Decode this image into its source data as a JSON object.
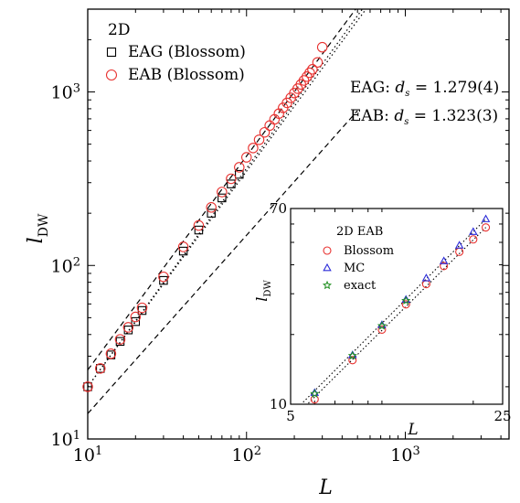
{
  "chart_data": [
    {
      "type": "scatter",
      "xlabel": "L",
      "ylabel": "l",
      "ylabel_sub": "DW",
      "xscale": "log",
      "yscale": "log",
      "xlim": [
        10,
        4500
      ],
      "ylim": [
        10,
        3000
      ],
      "xticks": [
        10,
        100,
        1000
      ],
      "xtick_labels": [
        {
          "base": "10",
          "exp": "1"
        },
        {
          "base": "10",
          "exp": "2"
        },
        {
          "base": "10",
          "exp": "3"
        }
      ],
      "yticks": [
        10,
        100,
        1000
      ],
      "ytick_labels": [
        {
          "base": "10",
          "exp": "1"
        },
        {
          "base": "10",
          "exp": "2"
        },
        {
          "base": "10",
          "exp": "3"
        }
      ],
      "legend": {
        "title": "2D",
        "placement": "top-left",
        "entries": [
          {
            "label": "EAG (Blossom)",
            "marker": "square",
            "color": "#000000"
          },
          {
            "label": "EAB (Blossom)",
            "marker": "circle",
            "color": "#e8312f"
          }
        ]
      },
      "annotations": [
        {
          "prefix": "EAG: ",
          "symbol": "d",
          "subscript": "s",
          "value": " = 1.279(4)"
        },
        {
          "prefix": "EAB: ",
          "symbol": "d",
          "subscript": "s",
          "value": " = 1.323(3)"
        }
      ],
      "series": [
        {
          "name": "EAG (Blossom)",
          "marker": "square",
          "color": "#000000",
          "x": [
            10,
            12,
            14,
            16,
            18,
            20,
            22,
            30,
            40,
            50,
            60,
            70,
            80,
            90
          ],
          "y": [
            20,
            25.5,
            30.5,
            36.5,
            42.5,
            47.5,
            55,
            82,
            121,
            160,
            200,
            245,
            295,
            335
          ]
        },
        {
          "name": "EAB (Blossom)",
          "marker": "circle",
          "color": "#e8312f",
          "x": [
            10,
            12,
            14,
            16,
            18,
            20,
            22,
            30,
            40,
            50,
            60,
            70,
            80,
            90,
            100,
            110,
            120,
            130,
            140,
            150,
            160,
            170,
            180,
            190,
            200,
            210,
            220,
            230,
            240,
            250,
            260,
            280,
            300
          ],
          "y": [
            20,
            25.5,
            31,
            37.5,
            44,
            50.5,
            57,
            86,
            128,
            170,
            216,
            265,
            316,
            368,
            420,
            475,
            530,
            585,
            640,
            695,
            750,
            810,
            865,
            925,
            985,
            1045,
            1105,
            1165,
            1225,
            1290,
            1350,
            1480,
            1810
          ]
        }
      ],
      "guides": [
        {
          "style": "dashed",
          "x": [
            10,
            500
          ],
          "y": [
            25,
            3100
          ]
        },
        {
          "style": "dashed",
          "x": [
            10,
            500
          ],
          "y": [
            14,
            780
          ]
        },
        {
          "style": "dotted",
          "x": [
            10,
            550
          ],
          "y": [
            20,
            3100
          ]
        },
        {
          "style": "dotted",
          "x": [
            10,
            580
          ],
          "y": [
            20,
            3100
          ]
        }
      ]
    },
    {
      "type": "scatter",
      "xlabel": "L",
      "ylabel": "l",
      "ylabel_sub": "DW",
      "xscale": "log",
      "yscale": "log",
      "xlim": [
        5,
        25
      ],
      "ylim": [
        10,
        70
      ],
      "xticks": [
        5,
        25
      ],
      "xtick_labels": [
        "5",
        "25"
      ],
      "yticks": [
        10,
        70
      ],
      "ytick_labels": [
        "10",
        "70"
      ],
      "legend": {
        "title": "2D EAB",
        "placement": "top-left",
        "entries": [
          {
            "label": "Blossom",
            "marker": "circle",
            "color": "#e8312f"
          },
          {
            "label": "MC",
            "marker": "triangle",
            "color": "#2b2bd9"
          },
          {
            "label": "exact",
            "marker": "star",
            "color": "#1f8f1f"
          }
        ]
      },
      "series": [
        {
          "name": "Blossom",
          "marker": "circle",
          "color": "#e8312f",
          "x": [
            6,
            8,
            10,
            12,
            14,
            16,
            18,
            20,
            22
          ],
          "y": [
            10.5,
            15.5,
            21,
            27,
            33,
            39.5,
            45.5,
            51.5,
            58
          ]
        },
        {
          "name": "MC",
          "marker": "triangle",
          "color": "#2b2bd9",
          "x": [
            6,
            8,
            10,
            12,
            14,
            16,
            18,
            20,
            22
          ],
          "y": [
            11.2,
            16.3,
            22,
            28.3,
            35,
            41.5,
            48.5,
            55.5,
            63
          ]
        },
        {
          "name": "exact",
          "marker": "star",
          "color": "#1f8f1f",
          "x": [
            6,
            8,
            10,
            12
          ],
          "y": [
            11.1,
            16.2,
            21.8,
            28
          ]
        }
      ],
      "guides": [
        {
          "style": "dotted",
          "x": [
            5.5,
            22
          ],
          "y": [
            9.6,
            58
          ]
        },
        {
          "style": "dotted",
          "x": [
            5.5,
            22
          ],
          "y": [
            10.2,
            63
          ]
        }
      ]
    }
  ]
}
